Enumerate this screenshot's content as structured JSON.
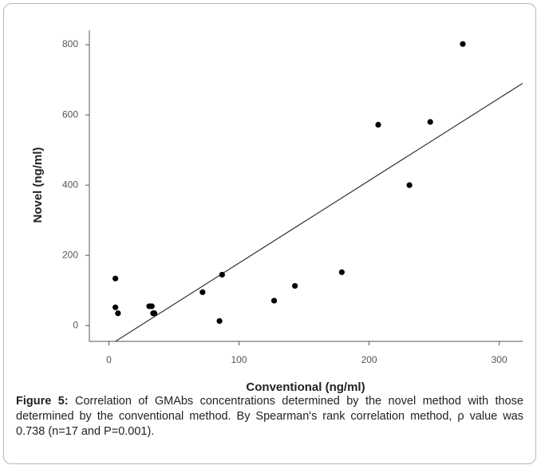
{
  "chart_data": {
    "type": "scatter",
    "x_label": "Conventional (ng/ml)",
    "y_label": "Novel (ng/ml)",
    "x": [
      5,
      5,
      7,
      31,
      33,
      34,
      35,
      72,
      87,
      85,
      127,
      143,
      179,
      207,
      231,
      247,
      272
    ],
    "y": [
      134,
      52,
      35,
      55,
      55,
      35,
      35,
      95,
      145,
      13,
      71,
      113,
      152,
      572,
      400,
      580,
      802
    ],
    "color": "#000000",
    "trend_line": {
      "x": [
        5,
        318
      ],
      "y": [
        -45,
        690
      ],
      "color": "#333333"
    },
    "xlim": [
      -15,
      318
    ],
    "ylim": [
      -45,
      841
    ],
    "xticks": [
      0,
      100,
      200,
      300
    ],
    "yticks": [
      0,
      200,
      400,
      600,
      800
    ]
  },
  "caption": {
    "label": "Figure 5:",
    "text": "Correlation of GMAbs concentrations determined by the novel method with those determined by the conventional method. By Spearman's rank correlation method, ρ value was 0.738 (n=17 and P=0.001)."
  }
}
